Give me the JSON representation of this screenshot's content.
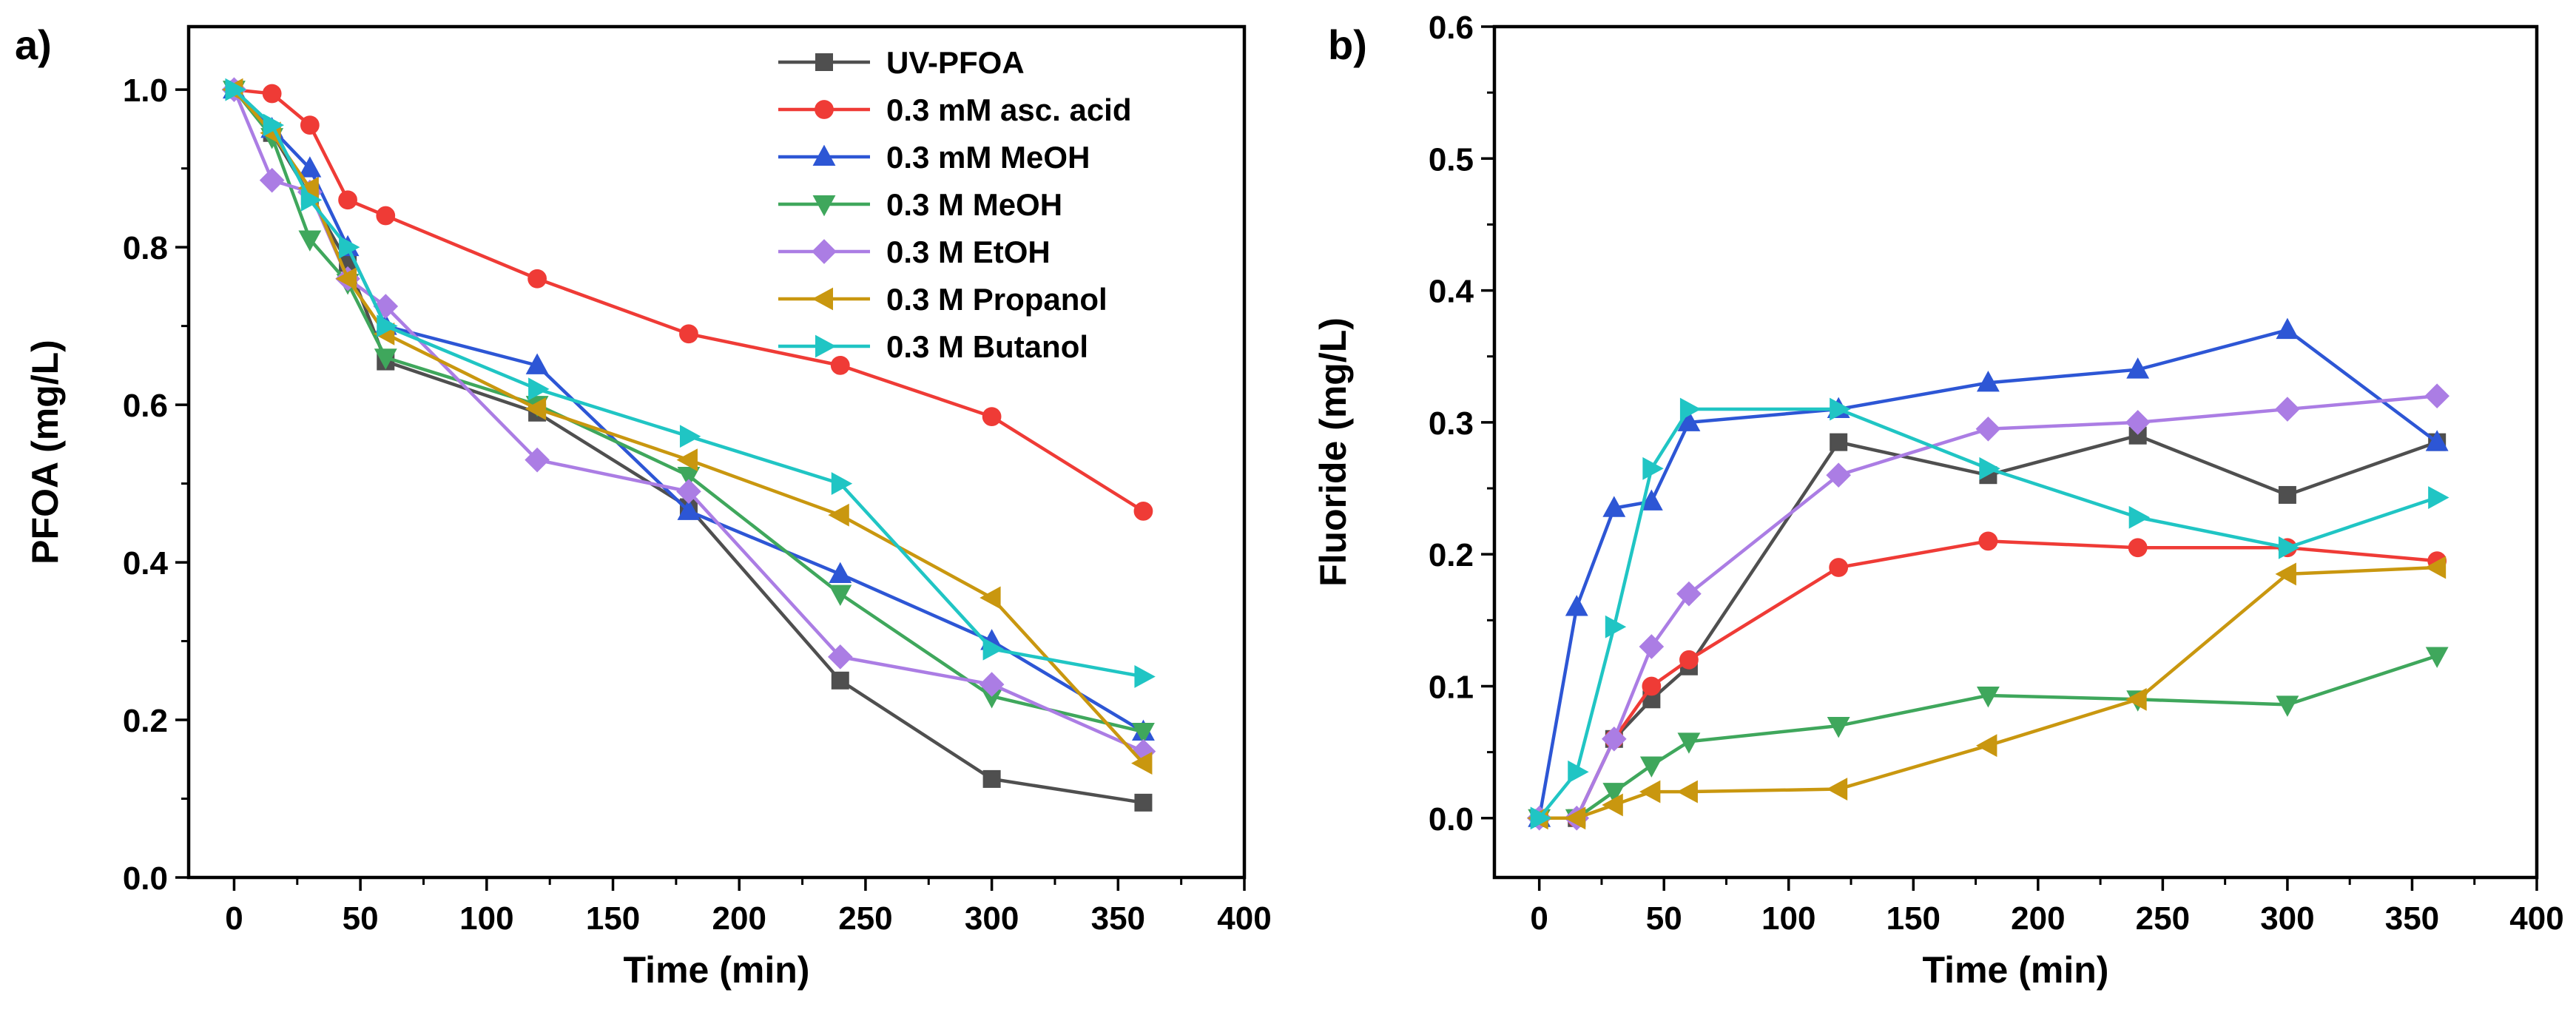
{
  "page": {
    "background": "#ffffff",
    "text_color": "#000000",
    "axis_color": "#000000"
  },
  "chart_data": [
    {
      "type": "line",
      "panel_label": "a)",
      "title": "",
      "xlabel": "Time (min)",
      "ylabel": "PFOA (mg/L)",
      "xlim": [
        -18,
        400
      ],
      "ylim": [
        0,
        1.08
      ],
      "xticks": [
        0,
        50,
        100,
        150,
        200,
        250,
        300,
        350,
        400
      ],
      "yticks": [
        0.0,
        0.2,
        0.4,
        0.6,
        0.8,
        1.0
      ],
      "x_minor_step": 25,
      "y_minor_step": 0.1,
      "ytick_decimals": 1,
      "grid": false,
      "legend_position": "top-right-inside",
      "x": [
        0,
        15,
        30,
        45,
        60,
        120,
        180,
        240,
        300,
        360
      ],
      "series": [
        {
          "name": "UV-PFOA",
          "color": "#4f4f4f",
          "marker": "square",
          "values": [
            1.0,
            0.945,
            0.865,
            0.78,
            0.655,
            0.59,
            0.47,
            0.25,
            0.125,
            0.095
          ]
        },
        {
          "name": "0.3 mM asc. acid",
          "color": "#ef3b36",
          "marker": "circle",
          "values": [
            1.0,
            0.995,
            0.955,
            0.86,
            0.84,
            0.76,
            0.69,
            0.65,
            0.585,
            0.465
          ]
        },
        {
          "name": "0.3 mM MeOH",
          "color": "#2d56d5",
          "marker": "triangle-up",
          "values": [
            1.0,
            0.95,
            0.9,
            0.8,
            0.7,
            0.65,
            0.465,
            0.385,
            0.3,
            0.185
          ]
        },
        {
          "name": "0.3 M MeOH",
          "color": "#3fa75c",
          "marker": "triangle-down",
          "values": [
            1.0,
            0.94,
            0.81,
            0.755,
            0.66,
            0.6,
            0.51,
            0.36,
            0.23,
            0.185
          ]
        },
        {
          "name": "0.3 M EtOH",
          "color": "#ab7de4",
          "marker": "diamond",
          "values": [
            1.0,
            0.885,
            0.87,
            0.76,
            0.725,
            0.53,
            0.49,
            0.28,
            0.245,
            0.16
          ]
        },
        {
          "name": "0.3 M Propanol",
          "color": "#c9970f",
          "marker": "triangle-left",
          "values": [
            1.0,
            0.945,
            0.875,
            0.76,
            0.69,
            0.595,
            0.53,
            0.46,
            0.355,
            0.145
          ]
        },
        {
          "name": "0.3 M Butanol",
          "color": "#20c5c4",
          "marker": "triangle-right",
          "values": [
            1.0,
            0.955,
            0.86,
            0.8,
            0.7,
            0.62,
            0.56,
            0.5,
            0.29,
            0.255
          ]
        }
      ]
    },
    {
      "type": "line",
      "panel_label": "b)",
      "title": "",
      "xlabel": "Time (min)",
      "ylabel": "Fluoride (mg/L)",
      "xlim": [
        -18,
        400
      ],
      "ylim": [
        -0.045,
        0.6
      ],
      "xticks": [
        0,
        50,
        100,
        150,
        200,
        250,
        300,
        350,
        400
      ],
      "yticks": [
        0.0,
        0.1,
        0.2,
        0.3,
        0.4,
        0.5,
        0.6
      ],
      "x_minor_step": 25,
      "y_minor_step": 0.05,
      "ytick_decimals": 1,
      "grid": false,
      "legend_position": "none",
      "x": [
        0,
        15,
        30,
        45,
        60,
        120,
        180,
        240,
        300,
        360
      ],
      "series": [
        {
          "name": "UV-PFOA",
          "color": "#4f4f4f",
          "marker": "square",
          "values": [
            0.0,
            0.0,
            0.06,
            0.09,
            0.115,
            0.285,
            0.26,
            0.29,
            0.245,
            0.285
          ]
        },
        {
          "name": "0.3 mM asc. acid",
          "color": "#ef3b36",
          "marker": "circle",
          "values": [
            0.0,
            0.0,
            0.06,
            0.1,
            0.12,
            0.19,
            0.21,
            0.205,
            0.205,
            0.195
          ]
        },
        {
          "name": "0.3 mM MeOH",
          "color": "#2d56d5",
          "marker": "triangle-up",
          "values": [
            0.0,
            0.16,
            0.235,
            0.24,
            0.3,
            0.31,
            0.33,
            0.34,
            0.37,
            0.285
          ]
        },
        {
          "name": "0.3 M MeOH",
          "color": "#3fa75c",
          "marker": "triangle-down",
          "values": [
            0.0,
            0.0,
            0.02,
            0.04,
            0.058,
            0.07,
            0.093,
            0.09,
            0.086,
            0.123
          ]
        },
        {
          "name": "0.3 M EtOH",
          "color": "#ab7de4",
          "marker": "diamond",
          "values": [
            0.0,
            0.0,
            0.06,
            0.13,
            0.17,
            0.26,
            0.295,
            0.3,
            0.31,
            0.32
          ]
        },
        {
          "name": "0.3 M Propanol",
          "color": "#c9970f",
          "marker": "triangle-left",
          "values": [
            0.0,
            0.0,
            0.01,
            0.02,
            0.02,
            0.022,
            0.055,
            0.09,
            0.185,
            0.19
          ]
        },
        {
          "name": "0.3 M Butanol",
          "color": "#20c5c4",
          "marker": "triangle-right",
          "values": [
            0.0,
            0.035,
            0.145,
            0.265,
            0.31,
            0.31,
            0.265,
            0.228,
            0.205,
            0.243
          ]
        }
      ]
    }
  ]
}
